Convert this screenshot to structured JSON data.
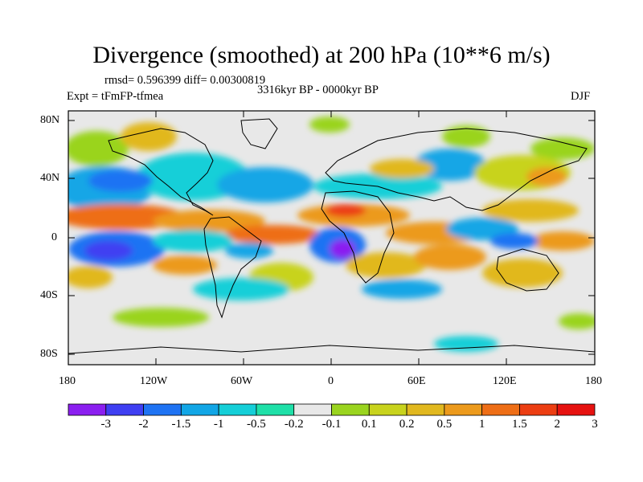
{
  "title": "Divergence (smoothed) at 200 hPa (10**6 m/s)",
  "stats": "rmsd= 0.596399 diff= 0.00300819",
  "period": "3316kyr BP - 0000kyr BP",
  "experiment": "Expt = tFmFP-tfmea",
  "season": "DJF",
  "lat_ticks": [
    "80N",
    "40N",
    "0",
    "40S",
    "80S"
  ],
  "lon_ticks": [
    "180",
    "120W",
    "60W",
    "0",
    "60E",
    "120E",
    "180"
  ],
  "colorbar": {
    "colors": [
      "#8b1ff0",
      "#3f3ff2",
      "#1f73f3",
      "#12a6e6",
      "#15cfd8",
      "#1fe0a8",
      "#e8e8e8",
      "#9ad41f",
      "#c8d31d",
      "#e1b81f",
      "#ec9a1c",
      "#ee6e16",
      "#ec3e12",
      "#e61210"
    ],
    "labels": [
      "-3",
      "-2",
      "-1.5",
      "-1",
      "-0.5",
      "-0.2",
      "-0.1",
      "0.1",
      "0.2",
      "0.5",
      "1",
      "1.5",
      "2",
      "3"
    ]
  }
}
